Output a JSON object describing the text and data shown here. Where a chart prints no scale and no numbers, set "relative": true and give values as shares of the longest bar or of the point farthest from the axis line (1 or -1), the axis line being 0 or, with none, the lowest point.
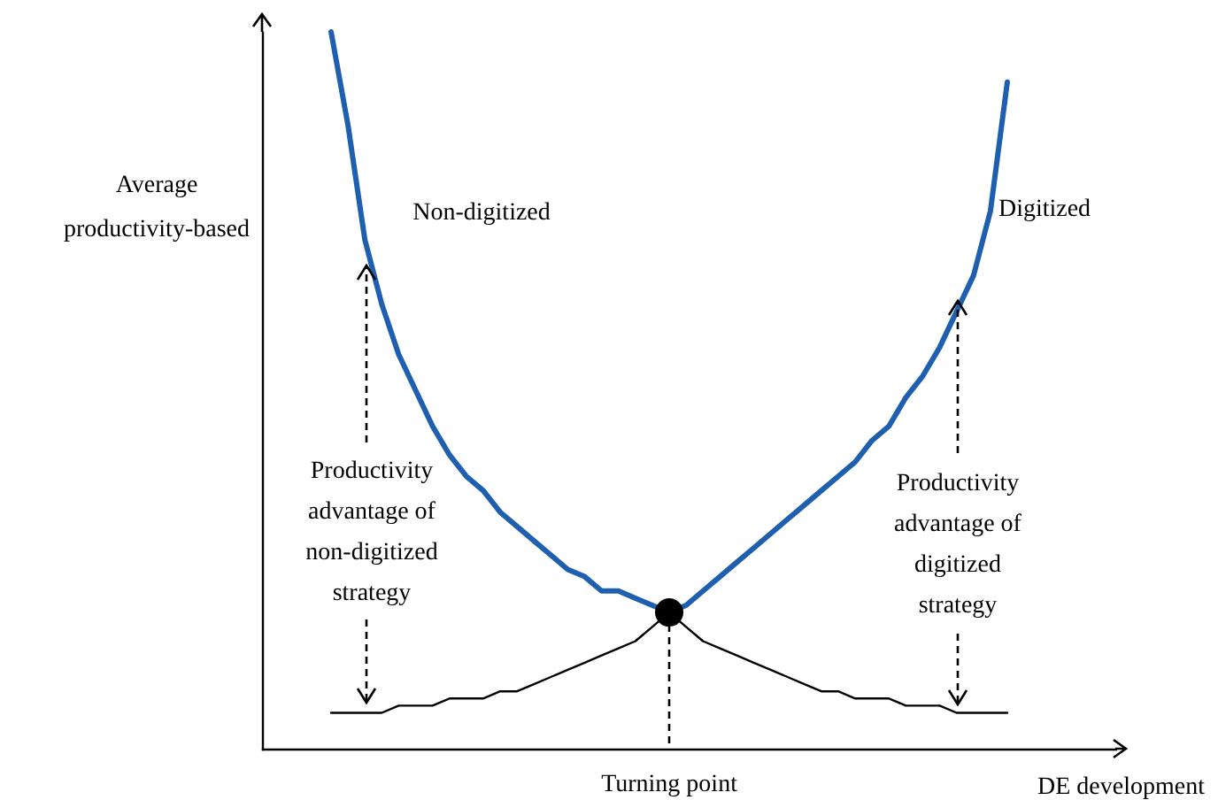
{
  "chart_data": {
    "type": "line",
    "relative": true,
    "categories": [
      null,
      null,
      null,
      null,
      null,
      null,
      null,
      null,
      null,
      null,
      null,
      null,
      null,
      null,
      null,
      null,
      null,
      null,
      null,
      null,
      null,
      null,
      null,
      null,
      null,
      null,
      null,
      null,
      null,
      null,
      null,
      null,
      null,
      null,
      null,
      null,
      null,
      null,
      null,
      null,
      null
    ],
    "xlabel": "DE development",
    "ylabel": "Average productivity-based",
    "series": [
      {
        "color": "#1f5fb0",
        "values": [
          1.0,
          0.87,
          0.71,
          0.62,
          0.55,
          0.5,
          0.45,
          0.41,
          0.38,
          0.36,
          0.33,
          0.31,
          0.29,
          0.27,
          0.25,
          0.24,
          0.22,
          0.22,
          0.21,
          0.2,
          0.19,
          0.2,
          0.22,
          0.24,
          0.26,
          0.28,
          0.3,
          0.32,
          0.34,
          0.36,
          0.38,
          0.4,
          0.43,
          0.45,
          0.49,
          0.52,
          0.56,
          0.61,
          0.66,
          0.75,
          0.93
        ]
      },
      {
        "color": "#000000",
        "values": [
          0.05,
          0.05,
          0.05,
          0.05,
          0.06,
          0.06,
          0.06,
          0.07,
          0.07,
          0.07,
          0.08,
          0.08,
          0.09,
          0.1,
          0.11,
          0.12,
          0.13,
          0.14,
          0.15,
          0.17,
          0.19,
          0.17,
          0.15,
          0.14,
          0.13,
          0.12,
          0.11,
          0.1,
          0.09,
          0.08,
          0.08,
          0.07,
          0.07,
          0.07,
          0.06,
          0.06,
          0.06,
          0.05,
          0.05,
          0.05,
          0.05
        ]
      }
    ],
    "annotations": [
      "Non-digitized",
      "Digitized",
      "Productivity advantage of non-digitized strategy",
      "Productivity advantage of digitized strategy",
      "Turning point"
    ]
  }
}
